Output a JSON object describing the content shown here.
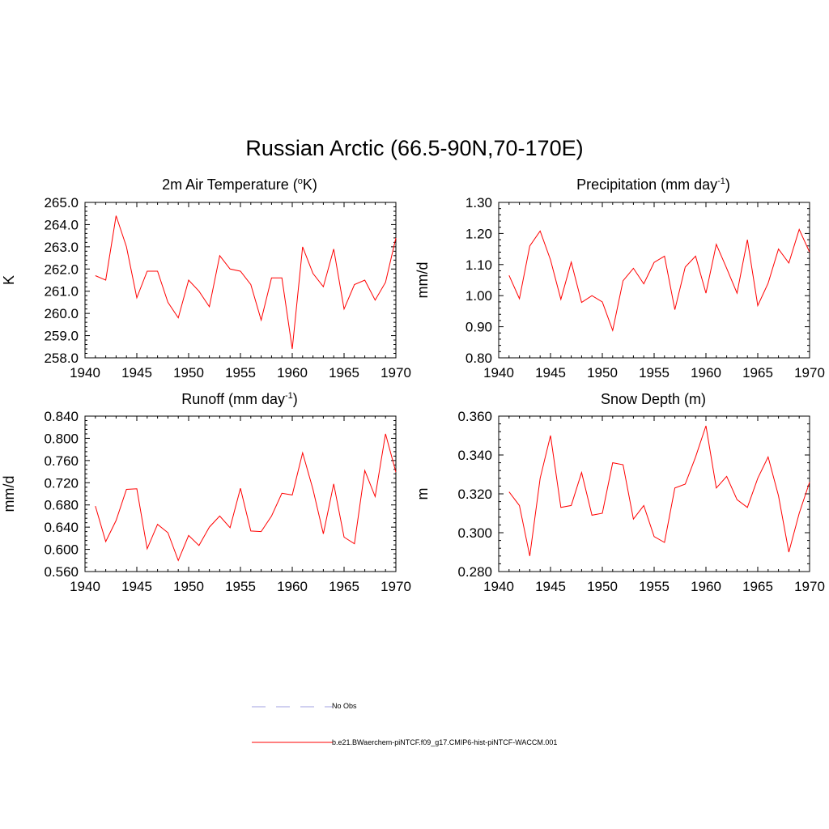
{
  "figure_title": "Russian Arctic (66.5-90N,70-170E)",
  "colors": {
    "model_line": "#ff0000",
    "obs_line": "#a0a0e0"
  },
  "legend": {
    "obs_label": "No Obs",
    "model_label": "b.e21.BWaerchem-piNTCF.f09_g17.CMIP6-hist-piNTCF-WACCM.001"
  },
  "chart_data": [
    {
      "type": "line",
      "title_main": "2m Air Temperature (",
      "title_sup": "o",
      "title_tail": "K)",
      "ylabel": "K",
      "xlim": [
        1940,
        1970
      ],
      "ylim": [
        258.0,
        265.0
      ],
      "xticks": [
        "1940",
        "1945",
        "1950",
        "1955",
        "1960",
        "1965",
        "1970"
      ],
      "yticks": [
        "258.0",
        "259.0",
        "260.0",
        "261.0",
        "262.0",
        "263.0",
        "264.0",
        "265.0"
      ],
      "x": [
        1941,
        1942,
        1943,
        1944,
        1945,
        1946,
        1947,
        1948,
        1949,
        1950,
        1951,
        1952,
        1953,
        1954,
        1955,
        1956,
        1957,
        1958,
        1959,
        1960,
        1961,
        1962,
        1963,
        1964,
        1965,
        1966,
        1967,
        1968,
        1969,
        1970
      ],
      "series": [
        {
          "values": [
            261.7,
            261.5,
            264.4,
            263.0,
            260.7,
            261.9,
            261.9,
            260.5,
            259.8,
            261.5,
            261.0,
            260.3,
            262.6,
            262.0,
            261.9,
            261.3,
            259.7,
            261.6,
            261.6,
            258.4,
            263.0,
            261.8,
            261.2,
            262.9,
            260.2,
            261.3,
            261.5,
            260.6,
            261.4,
            263.4
          ]
        }
      ]
    },
    {
      "type": "line",
      "title_main": "Precipitation (mm day",
      "title_sup": "-1",
      "title_tail": ")",
      "ylabel": "mm/d",
      "xlim": [
        1940,
        1970
      ],
      "ylim": [
        0.8,
        1.3
      ],
      "xticks": [
        "1940",
        "1945",
        "1950",
        "1955",
        "1960",
        "1965",
        "1970"
      ],
      "yticks": [
        "0.80",
        "0.90",
        "1.00",
        "1.10",
        "1.20",
        "1.30"
      ],
      "x": [
        1941,
        1942,
        1943,
        1944,
        1945,
        1946,
        1947,
        1948,
        1949,
        1950,
        1951,
        1952,
        1953,
        1954,
        1955,
        1956,
        1957,
        1958,
        1959,
        1960,
        1961,
        1962,
        1963,
        1964,
        1965,
        1966,
        1967,
        1968,
        1969,
        1970
      ],
      "series": [
        {
          "values": [
            1.065,
            0.99,
            1.16,
            1.208,
            1.115,
            0.988,
            1.108,
            0.978,
            1.0,
            0.98,
            0.888,
            1.048,
            1.088,
            1.038,
            1.107,
            1.127,
            0.955,
            1.092,
            1.127,
            1.008,
            1.165,
            1.088,
            1.008,
            1.18,
            0.968,
            1.04,
            1.15,
            1.105,
            1.213,
            1.14
          ]
        }
      ]
    },
    {
      "type": "line",
      "title_main": "Runoff (mm day",
      "title_sup": "-1",
      "title_tail": ")",
      "ylabel": "mm/d",
      "xlim": [
        1940,
        1970
      ],
      "ylim": [
        0.56,
        0.84
      ],
      "xticks": [
        "1940",
        "1945",
        "1950",
        "1955",
        "1960",
        "1965",
        "1970"
      ],
      "yticks": [
        "0.560",
        "0.600",
        "0.640",
        "0.680",
        "0.720",
        "0.760",
        "0.800",
        "0.840"
      ],
      "x": [
        1941,
        1942,
        1943,
        1944,
        1945,
        1946,
        1947,
        1948,
        1949,
        1950,
        1951,
        1952,
        1953,
        1954,
        1955,
        1956,
        1957,
        1958,
        1959,
        1960,
        1961,
        1962,
        1963,
        1964,
        1965,
        1966,
        1967,
        1968,
        1969,
        1970
      ],
      "series": [
        {
          "values": [
            0.678,
            0.614,
            0.652,
            0.708,
            0.709,
            0.601,
            0.645,
            0.63,
            0.58,
            0.625,
            0.607,
            0.64,
            0.66,
            0.639,
            0.71,
            0.633,
            0.632,
            0.66,
            0.701,
            0.698,
            0.774,
            0.708,
            0.628,
            0.718,
            0.622,
            0.61,
            0.742,
            0.695,
            0.808,
            0.739
          ]
        }
      ]
    },
    {
      "type": "line",
      "title_main": "Snow Depth (m)",
      "title_sup": "",
      "title_tail": "",
      "ylabel": "m",
      "xlim": [
        1940,
        1970
      ],
      "ylim": [
        0.28,
        0.36
      ],
      "xticks": [
        "1940",
        "1945",
        "1950",
        "1955",
        "1960",
        "1965",
        "1970"
      ],
      "yticks": [
        "0.280",
        "0.300",
        "0.320",
        "0.340",
        "0.360"
      ],
      "x": [
        1941,
        1942,
        1943,
        1944,
        1945,
        1946,
        1947,
        1948,
        1949,
        1950,
        1951,
        1952,
        1953,
        1954,
        1955,
        1956,
        1957,
        1958,
        1959,
        1960,
        1961,
        1962,
        1963,
        1964,
        1965,
        1966,
        1967,
        1968,
        1969,
        1970
      ],
      "series": [
        {
          "values": [
            0.321,
            0.314,
            0.288,
            0.328,
            0.35,
            0.313,
            0.314,
            0.331,
            0.309,
            0.31,
            0.336,
            0.335,
            0.307,
            0.314,
            0.298,
            0.295,
            0.323,
            0.325,
            0.339,
            0.355,
            0.323,
            0.329,
            0.317,
            0.313,
            0.328,
            0.339,
            0.319,
            0.29,
            0.31,
            0.326
          ]
        }
      ]
    }
  ]
}
